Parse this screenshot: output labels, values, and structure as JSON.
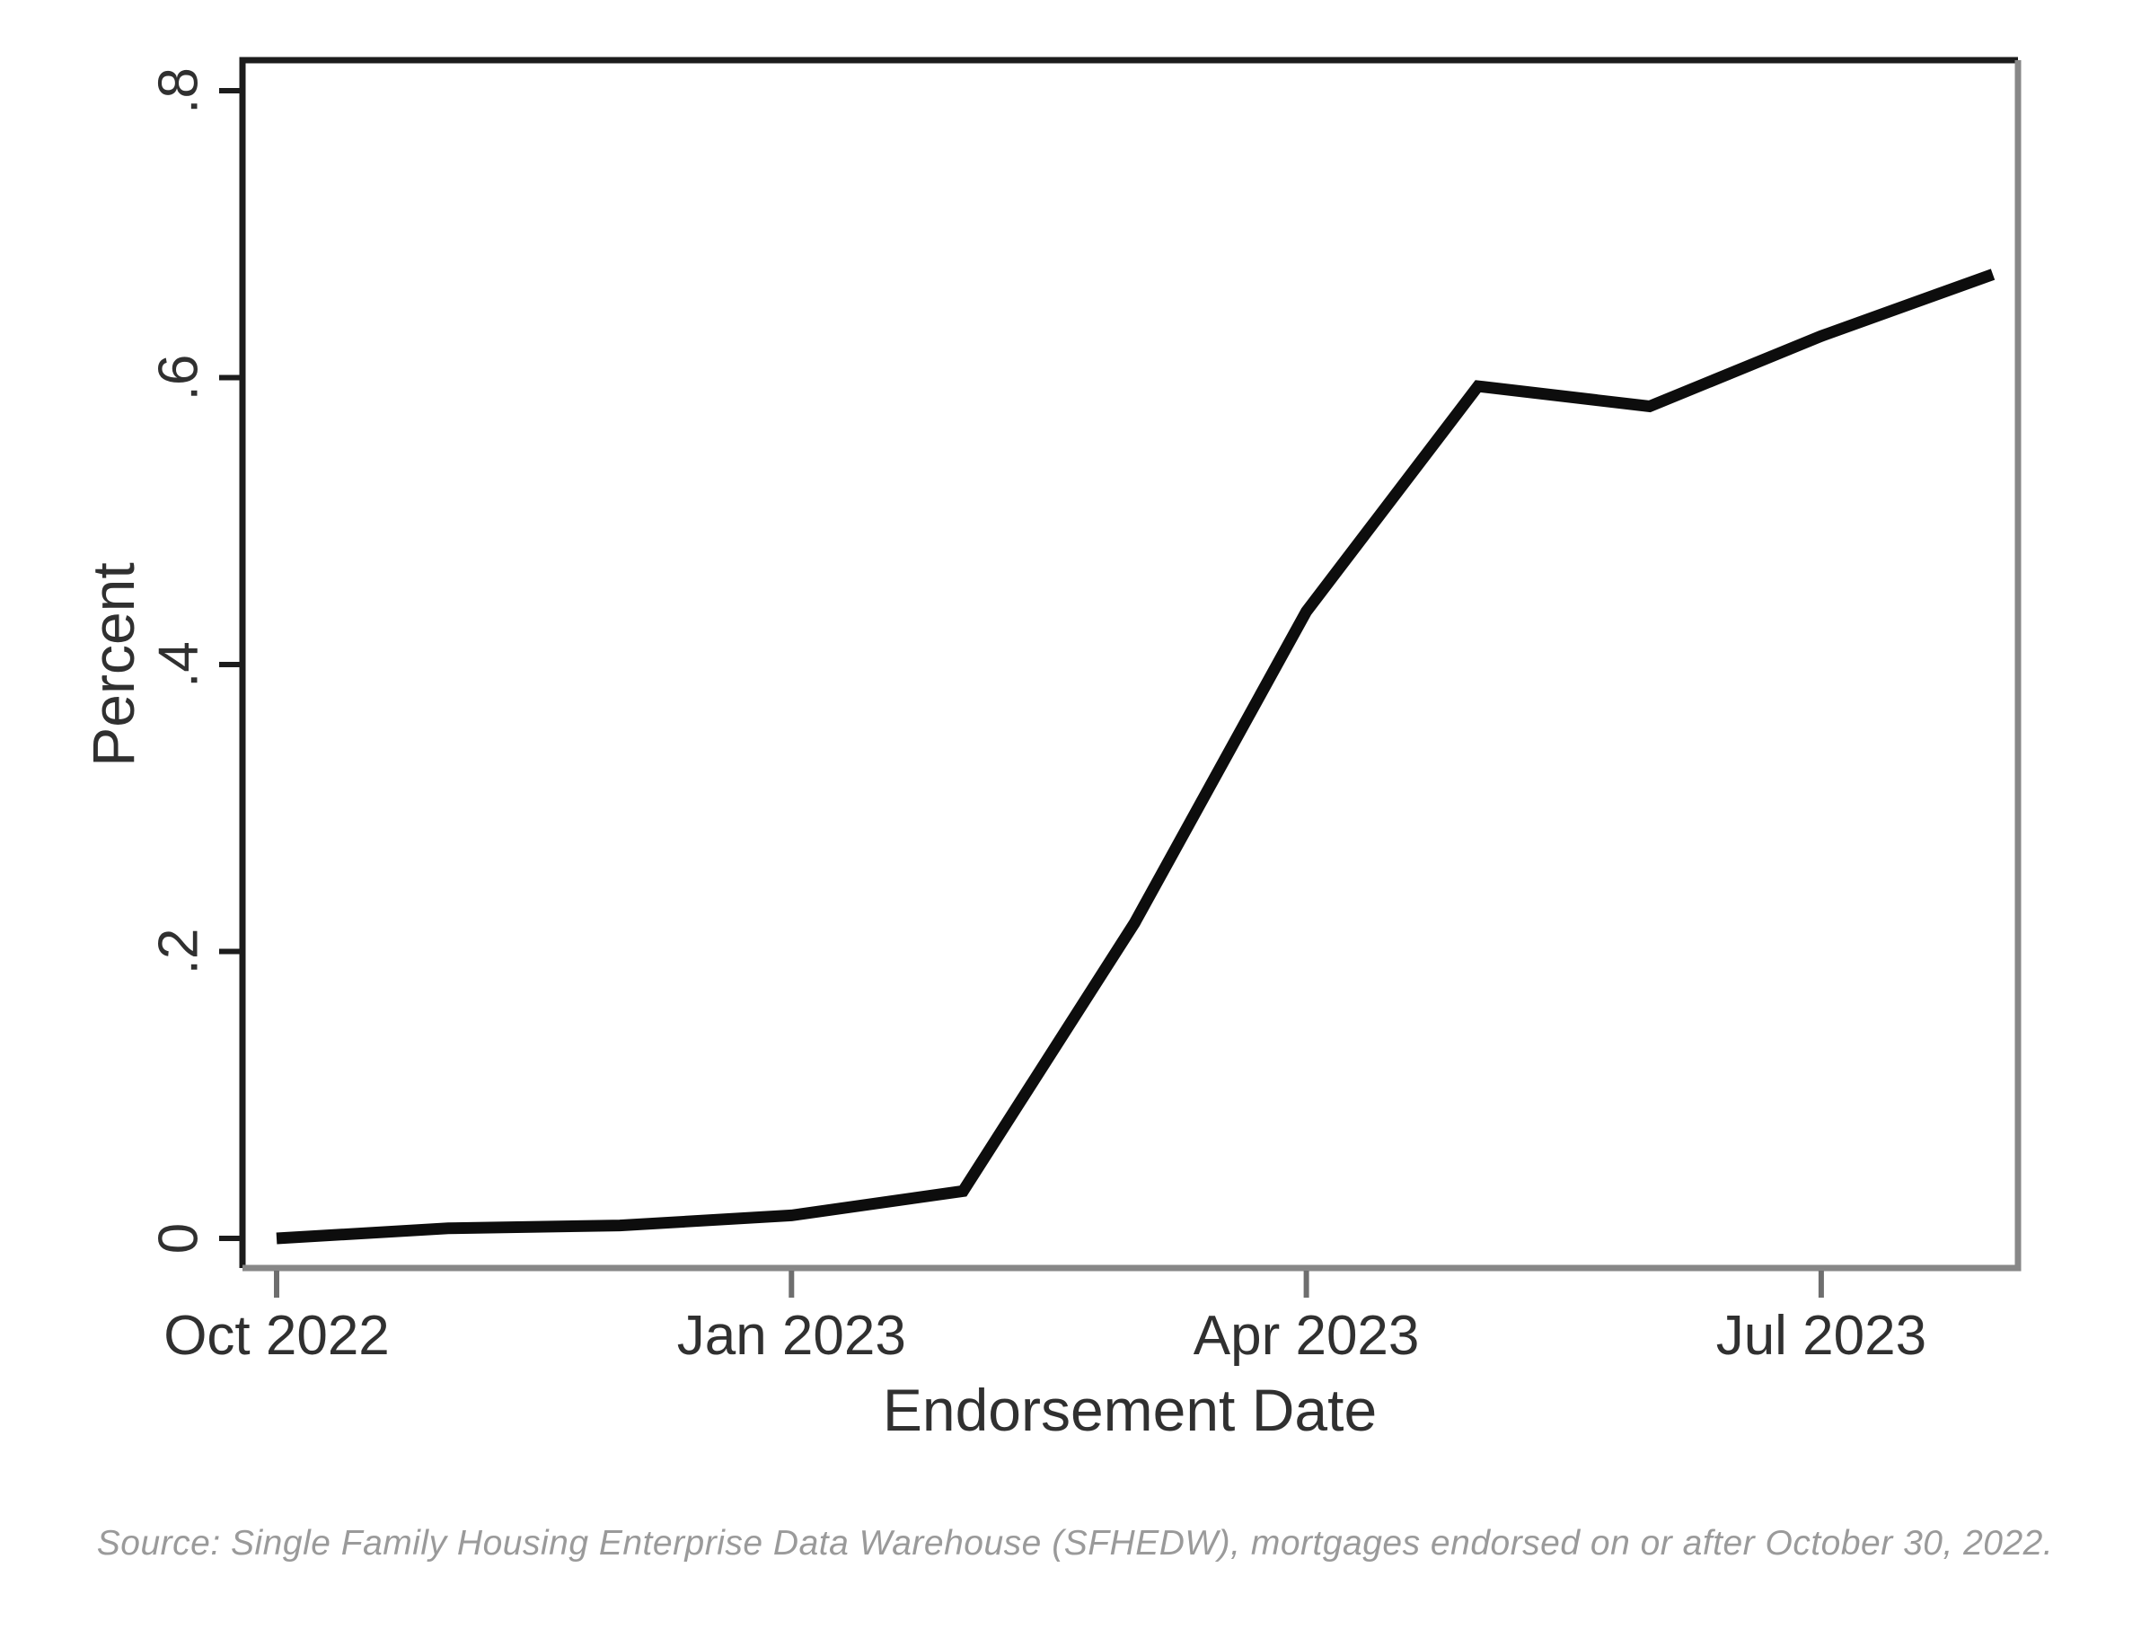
{
  "chart_data": {
    "type": "line",
    "title": "",
    "xlabel": "Endorsement Date",
    "ylabel": "Percent",
    "x": [
      "Oct 2022",
      "Nov 2022",
      "Dec 2022",
      "Jan 2023",
      "Feb 2023",
      "Mar 2023",
      "Apr 2023",
      "May 2023",
      "Jun 2023",
      "Jul 2023",
      "Aug 2023"
    ],
    "values": [
      0.0,
      0.007,
      0.009,
      0.016,
      0.033,
      0.22,
      0.437,
      0.594,
      0.58,
      0.629,
      0.672
    ],
    "x_tick_labels": [
      "Oct 2022",
      "Jan 2023",
      "Apr 2023",
      "Jul 2023"
    ],
    "x_tick_indices": [
      0,
      3,
      6,
      9
    ],
    "y_ticks": [
      0,
      0.2,
      0.4,
      0.6,
      0.8
    ],
    "y_tick_labels": [
      "0",
      ".2",
      ".4",
      ".6",
      ".8"
    ],
    "ylim": [
      0,
      0.8
    ],
    "grid": false,
    "legend": "none",
    "line_color": "#0d0d0d",
    "frame_dark_color": "#1c1c1c",
    "frame_gray_color": "#878787",
    "text_color": "#303030"
  },
  "source_note": "Source: Single Family Housing Enterprise Data Warehouse (SFHEDW), mortgages endorsed on or after October 30, 2022."
}
